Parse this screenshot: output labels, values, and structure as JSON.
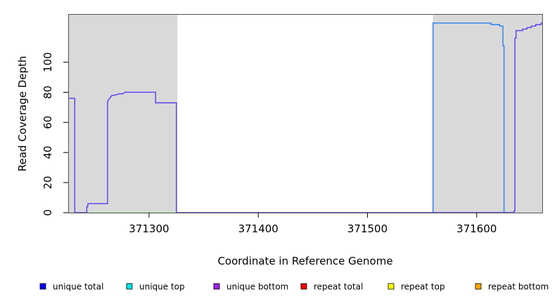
{
  "chart_data": {
    "type": "line",
    "title": "",
    "xlabel": "Coordinate in Reference Genome",
    "ylabel": "Read Coverage Depth",
    "xlim": [
      371226,
      371660
    ],
    "ylim": [
      0,
      132
    ],
    "x_ticks": [
      371300,
      371400,
      371500,
      371600
    ],
    "y_ticks": [
      0,
      20,
      40,
      60,
      80,
      100
    ],
    "grid": false,
    "shaded_regions": [
      {
        "x_start": 371226,
        "x_end": 371326,
        "color": "#d9d9d9"
      },
      {
        "x_start": 371560,
        "x_end": 371660,
        "color": "#d9d9d9"
      }
    ],
    "legend": {
      "placement": "bottom",
      "entries": [
        {
          "label": "unique total",
          "color": "#0000ff"
        },
        {
          "label": "unique top",
          "color": "#00e5e5"
        },
        {
          "label": "unique bottom",
          "color": "#a020f0"
        },
        {
          "label": "repeat total",
          "color": "#ff0000"
        },
        {
          "label": "repeat top",
          "color": "#ffff00"
        },
        {
          "label": "repeat bottom",
          "color": "#ffa500"
        }
      ]
    },
    "series": [
      {
        "name": "unique bottom",
        "color": "#5b3cf0",
        "x": [
          371226,
          371232,
          371232,
          371243,
          371243,
          371244,
          371244,
          371262,
          371262,
          371263,
          371264,
          371265,
          371266,
          371268,
          371273,
          371276,
          371278,
          371306,
          371306,
          371325,
          371325,
          371634,
          371634,
          371635,
          371635,
          371636,
          371636,
          371642,
          371642,
          371646,
          371646,
          371650,
          371650,
          371654,
          371654,
          371659,
          371659,
          371660
        ],
        "y": [
          76,
          76,
          0,
          0,
          4,
          4,
          6,
          6,
          74,
          75,
          76,
          77,
          78,
          78,
          79,
          79,
          80,
          80,
          73,
          73,
          0,
          0,
          1,
          1,
          116,
          116,
          121,
          121,
          122,
          122,
          123,
          123,
          124,
          124,
          125,
          125,
          126,
          126
        ]
      },
      {
        "name": "unique total",
        "color": "#2b7cf0",
        "x": [
          371560,
          371560,
          371613,
          371613,
          371621,
          371621,
          371624,
          371624,
          371625,
          371625,
          371628
        ],
        "y": [
          0,
          126,
          126,
          125,
          125,
          124,
          124,
          111,
          111,
          0,
          0
        ]
      },
      {
        "name": "repeat total",
        "color": "#e8a0b0",
        "x": [
          371560,
          371628
        ],
        "y": [
          0,
          0
        ]
      },
      {
        "name": "unique top",
        "color": "#9ee89e",
        "x": [
          371226,
          371560
        ],
        "y": [
          0,
          0
        ]
      }
    ]
  }
}
